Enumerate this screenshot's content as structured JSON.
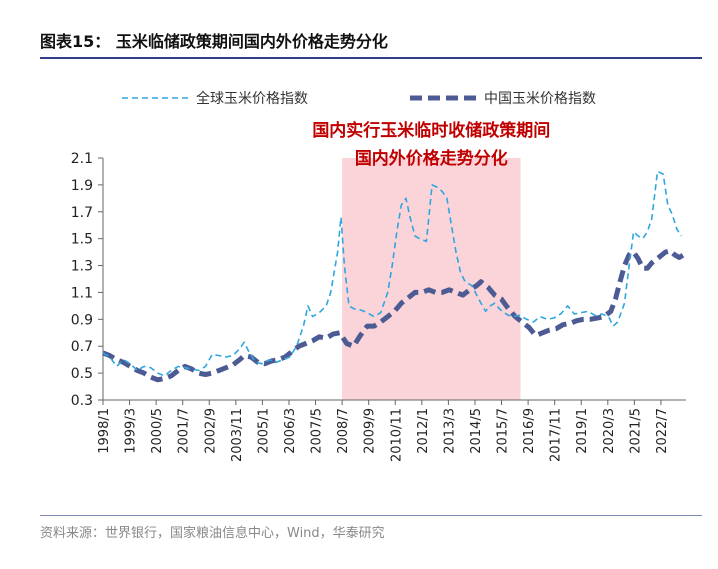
{
  "header": {
    "title": "图表15： 玉米临储政策期间国内外价格走势分化"
  },
  "source_note": "资料来源：世界银行，国家粮油信息中心，Wind，华泰研究",
  "chart_data": {
    "type": "line",
    "title": "",
    "xlabel": "",
    "ylabel": "",
    "ylim": [
      0.3,
      2.1
    ],
    "yticks": [
      0.3,
      0.5,
      0.7,
      0.9,
      1.1,
      1.3,
      1.5,
      1.7,
      1.9,
      2.1
    ],
    "x_ticks": [
      "1998/1",
      "1999/3",
      "2000/5",
      "2001/7",
      "2002/9",
      "2003/11",
      "2005/1",
      "2006/3",
      "2007/5",
      "2008/7",
      "2009/9",
      "2010/11",
      "2012/1",
      "2013/3",
      "2014/5",
      "2015/7",
      "2016/9",
      "2017/11",
      "2019/1",
      "2020/3",
      "2021/5",
      "2022/7"
    ],
    "legend_position": "top",
    "shaded_region": {
      "start": "2008/7",
      "end": "2016/5",
      "color": "#fad4d8",
      "label_line1": "国内实行玉米临时收储政策期间",
      "label_line2": "国内外价格走势分化",
      "label_color": "#c00000"
    },
    "series": [
      {
        "name": "全球玉米价格指数",
        "color": "#2ea6e0",
        "style": "dashed-thin",
        "points": [
          [
            1998.0,
            0.65
          ],
          [
            1998.3,
            0.62
          ],
          [
            1998.6,
            0.55
          ],
          [
            1998.9,
            0.6
          ],
          [
            1999.2,
            0.57
          ],
          [
            1999.5,
            0.52
          ],
          [
            1999.8,
            0.55
          ],
          [
            2000.1,
            0.54
          ],
          [
            2000.4,
            0.5
          ],
          [
            2000.7,
            0.48
          ],
          [
            2001.0,
            0.52
          ],
          [
            2001.3,
            0.55
          ],
          [
            2001.6,
            0.54
          ],
          [
            2001.9,
            0.53
          ],
          [
            2002.2,
            0.52
          ],
          [
            2002.5,
            0.55
          ],
          [
            2002.8,
            0.64
          ],
          [
            2003.1,
            0.63
          ],
          [
            2003.4,
            0.62
          ],
          [
            2003.7,
            0.63
          ],
          [
            2004.0,
            0.68
          ],
          [
            2004.2,
            0.73
          ],
          [
            2004.4,
            0.66
          ],
          [
            2004.7,
            0.58
          ],
          [
            2005.0,
            0.57
          ],
          [
            2005.3,
            0.6
          ],
          [
            2005.6,
            0.58
          ],
          [
            2005.9,
            0.6
          ],
          [
            2006.2,
            0.62
          ],
          [
            2006.5,
            0.7
          ],
          [
            2006.8,
            0.85
          ],
          [
            2007.0,
            1.0
          ],
          [
            2007.2,
            0.92
          ],
          [
            2007.5,
            0.95
          ],
          [
            2007.8,
            1.0
          ],
          [
            2008.0,
            1.1
          ],
          [
            2008.3,
            1.4
          ],
          [
            2008.45,
            1.66
          ],
          [
            2008.6,
            1.3
          ],
          [
            2008.8,
            1.0
          ],
          [
            2009.0,
            0.98
          ],
          [
            2009.3,
            0.97
          ],
          [
            2009.6,
            0.95
          ],
          [
            2009.9,
            0.92
          ],
          [
            2010.2,
            0.95
          ],
          [
            2010.5,
            1.1
          ],
          [
            2010.7,
            1.3
          ],
          [
            2010.9,
            1.55
          ],
          [
            2011.1,
            1.75
          ],
          [
            2011.3,
            1.8
          ],
          [
            2011.5,
            1.65
          ],
          [
            2011.7,
            1.52
          ],
          [
            2011.9,
            1.5
          ],
          [
            2012.2,
            1.48
          ],
          [
            2012.45,
            1.9
          ],
          [
            2012.7,
            1.88
          ],
          [
            2012.9,
            1.85
          ],
          [
            2013.1,
            1.8
          ],
          [
            2013.3,
            1.6
          ],
          [
            2013.5,
            1.4
          ],
          [
            2013.7,
            1.25
          ],
          [
            2013.9,
            1.18
          ],
          [
            2014.2,
            1.15
          ],
          [
            2014.5,
            1.05
          ],
          [
            2014.8,
            0.96
          ],
          [
            2015.0,
            1.0
          ],
          [
            2015.2,
            1.02
          ],
          [
            2015.4,
            0.98
          ],
          [
            2015.6,
            0.95
          ],
          [
            2015.8,
            0.93
          ],
          [
            2016.0,
            0.92
          ],
          [
            2016.3,
            0.93
          ],
          [
            2016.6,
            0.9
          ],
          [
            2016.9,
            0.88
          ],
          [
            2017.2,
            0.92
          ],
          [
            2017.5,
            0.9
          ],
          [
            2017.8,
            0.91
          ],
          [
            2018.1,
            0.94
          ],
          [
            2018.4,
            1.0
          ],
          [
            2018.7,
            0.94
          ],
          [
            2019.0,
            0.95
          ],
          [
            2019.3,
            0.96
          ],
          [
            2019.6,
            0.93
          ],
          [
            2019.9,
            0.94
          ],
          [
            2020.2,
            0.92
          ],
          [
            2020.4,
            0.85
          ],
          [
            2020.6,
            0.88
          ],
          [
            2020.9,
            1.02
          ],
          [
            2021.1,
            1.3
          ],
          [
            2021.3,
            1.55
          ],
          [
            2021.5,
            1.52
          ],
          [
            2021.7,
            1.5
          ],
          [
            2021.9,
            1.55
          ],
          [
            2022.1,
            1.65
          ],
          [
            2022.35,
            2.0
          ],
          [
            2022.6,
            1.98
          ],
          [
            2022.8,
            1.75
          ],
          [
            2023.0,
            1.68
          ],
          [
            2023.2,
            1.57
          ],
          [
            2023.4,
            1.52
          ]
        ]
      },
      {
        "name": "中国玉米价格指数",
        "color": "#4d5b94",
        "style": "dashed-thick",
        "points": [
          [
            1998.0,
            0.65
          ],
          [
            1998.3,
            0.63
          ],
          [
            1998.6,
            0.6
          ],
          [
            1998.9,
            0.58
          ],
          [
            1999.2,
            0.55
          ],
          [
            1999.5,
            0.52
          ],
          [
            1999.8,
            0.5
          ],
          [
            2000.1,
            0.47
          ],
          [
            2000.4,
            0.45
          ],
          [
            2000.7,
            0.46
          ],
          [
            2001.0,
            0.48
          ],
          [
            2001.3,
            0.52
          ],
          [
            2001.6,
            0.55
          ],
          [
            2001.9,
            0.53
          ],
          [
            2002.2,
            0.5
          ],
          [
            2002.5,
            0.49
          ],
          [
            2002.8,
            0.5
          ],
          [
            2003.1,
            0.52
          ],
          [
            2003.4,
            0.54
          ],
          [
            2003.7,
            0.56
          ],
          [
            2004.0,
            0.6
          ],
          [
            2004.2,
            0.63
          ],
          [
            2004.5,
            0.62
          ],
          [
            2004.8,
            0.58
          ],
          [
            2005.1,
            0.57
          ],
          [
            2005.4,
            0.59
          ],
          [
            2005.7,
            0.6
          ],
          [
            2006.0,
            0.62
          ],
          [
            2006.3,
            0.66
          ],
          [
            2006.6,
            0.7
          ],
          [
            2006.9,
            0.72
          ],
          [
            2007.2,
            0.74
          ],
          [
            2007.5,
            0.77
          ],
          [
            2007.8,
            0.76
          ],
          [
            2008.1,
            0.79
          ],
          [
            2008.4,
            0.8
          ],
          [
            2008.7,
            0.72
          ],
          [
            2009.0,
            0.7
          ],
          [
            2009.3,
            0.78
          ],
          [
            2009.6,
            0.85
          ],
          [
            2009.9,
            0.85
          ],
          [
            2010.2,
            0.88
          ],
          [
            2010.5,
            0.92
          ],
          [
            2010.8,
            0.96
          ],
          [
            2011.1,
            1.02
          ],
          [
            2011.4,
            1.06
          ],
          [
            2011.7,
            1.1
          ],
          [
            2012.0,
            1.1
          ],
          [
            2012.3,
            1.12
          ],
          [
            2012.6,
            1.1
          ],
          [
            2012.9,
            1.1
          ],
          [
            2013.2,
            1.12
          ],
          [
            2013.5,
            1.1
          ],
          [
            2013.8,
            1.08
          ],
          [
            2014.1,
            1.12
          ],
          [
            2014.4,
            1.15
          ],
          [
            2014.6,
            1.18
          ],
          [
            2014.9,
            1.14
          ],
          [
            2015.2,
            1.08
          ],
          [
            2015.5,
            1.05
          ],
          [
            2015.8,
            0.98
          ],
          [
            2016.1,
            0.92
          ],
          [
            2016.4,
            0.88
          ],
          [
            2016.7,
            0.84
          ],
          [
            2017.0,
            0.78
          ],
          [
            2017.3,
            0.8
          ],
          [
            2017.6,
            0.82
          ],
          [
            2017.9,
            0.83
          ],
          [
            2018.2,
            0.86
          ],
          [
            2018.5,
            0.87
          ],
          [
            2018.8,
            0.89
          ],
          [
            2019.1,
            0.9
          ],
          [
            2019.4,
            0.9
          ],
          [
            2019.7,
            0.91
          ],
          [
            2020.0,
            0.92
          ],
          [
            2020.3,
            0.96
          ],
          [
            2020.5,
            1.05
          ],
          [
            2020.7,
            1.18
          ],
          [
            2020.9,
            1.3
          ],
          [
            2021.1,
            1.38
          ],
          [
            2021.3,
            1.4
          ],
          [
            2021.5,
            1.35
          ],
          [
            2021.7,
            1.28
          ],
          [
            2021.9,
            1.28
          ],
          [
            2022.1,
            1.32
          ],
          [
            2022.4,
            1.36
          ],
          [
            2022.7,
            1.4
          ],
          [
            2022.9,
            1.41
          ],
          [
            2023.1,
            1.38
          ],
          [
            2023.3,
            1.36
          ],
          [
            2023.5,
            1.38
          ]
        ]
      }
    ]
  }
}
